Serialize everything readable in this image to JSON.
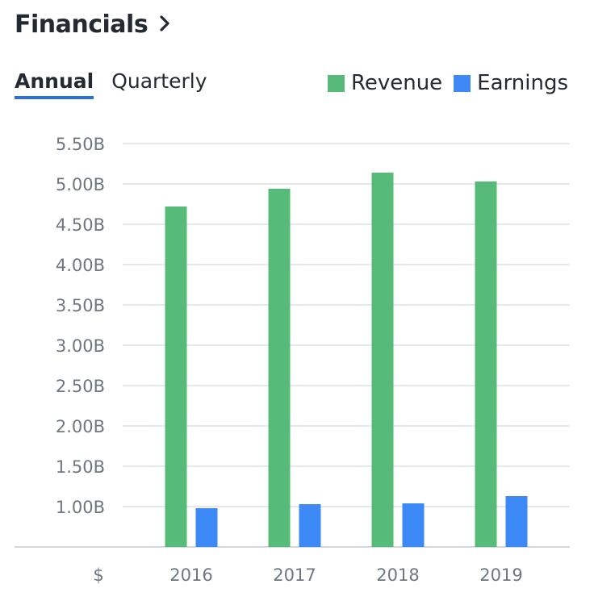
{
  "header": {
    "title": "Financials"
  },
  "tabs": [
    {
      "label": "Annual",
      "active": true
    },
    {
      "label": "Quarterly",
      "active": false
    }
  ],
  "colors": {
    "revenue": "#56bb78",
    "earnings": "#3d8af7",
    "accent": "#2c6ee6",
    "grid": "#e6e8ea",
    "axis": "#d4d8dc"
  },
  "chart_data": {
    "type": "bar",
    "title": "Financials",
    "categories": [
      "2016",
      "2017",
      "2018",
      "2019"
    ],
    "series": [
      {
        "name": "Revenue",
        "values": [
          4.72,
          4.94,
          5.14,
          5.03
        ]
      },
      {
        "name": "Earnings",
        "values": [
          0.98,
          1.03,
          1.04,
          1.13
        ]
      }
    ],
    "ylim": [
      0.5,
      5.5
    ],
    "yticks": [
      1.0,
      1.5,
      2.0,
      2.5,
      3.0,
      3.5,
      4.0,
      4.5,
      5.0,
      5.5
    ],
    "ytick_labels": [
      "1.00B",
      "1.50B",
      "2.00B",
      "2.50B",
      "3.00B",
      "3.50B",
      "4.00B",
      "4.50B",
      "5.00B",
      "5.50B"
    ],
    "currency_label": "$",
    "legend": [
      "Revenue",
      "Earnings"
    ],
    "legend_position": "top-right",
    "grid": true
  }
}
